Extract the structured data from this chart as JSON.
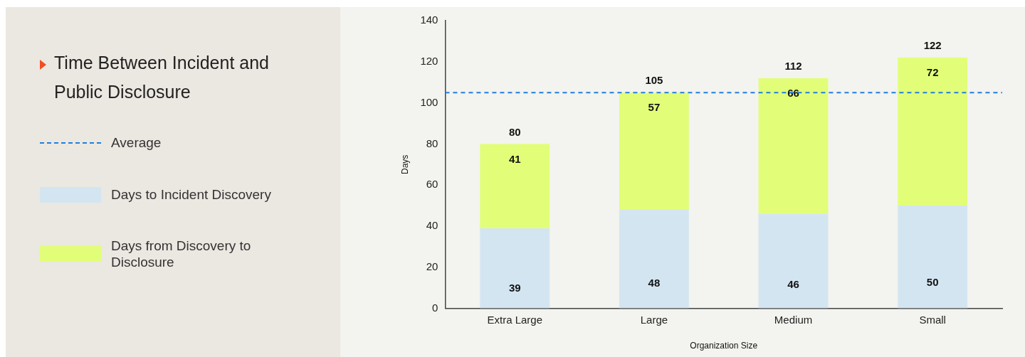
{
  "chart_data": {
    "type": "bar",
    "title": "Time Between Incident and Public Disclosure",
    "xlabel": "Organization Size",
    "ylabel": "Days",
    "categories": [
      "Extra Large",
      "Large",
      "Medium",
      "Small"
    ],
    "series": [
      {
        "name": "Days to Incident Discovery",
        "color": "#d4e5f2",
        "values": [
          39,
          48,
          46,
          50
        ]
      },
      {
        "name": "Days from Discovery to Disclosure",
        "color": "#e2fe78",
        "values": [
          41,
          57,
          66,
          72
        ]
      }
    ],
    "stacked": true,
    "ylim": [
      0,
      140
    ],
    "yticks": [
      0,
      20,
      40,
      60,
      80,
      100,
      120,
      140
    ],
    "grid": false,
    "legend": "left",
    "data_labels": true,
    "totals": [
      "80",
      "105",
      "112",
      "122"
    ],
    "ref_lines": [
      {
        "axis": "y",
        "value": 105,
        "label": "Average",
        "color": "#1f7fe0",
        "line_style": "dashed"
      }
    ]
  }
}
